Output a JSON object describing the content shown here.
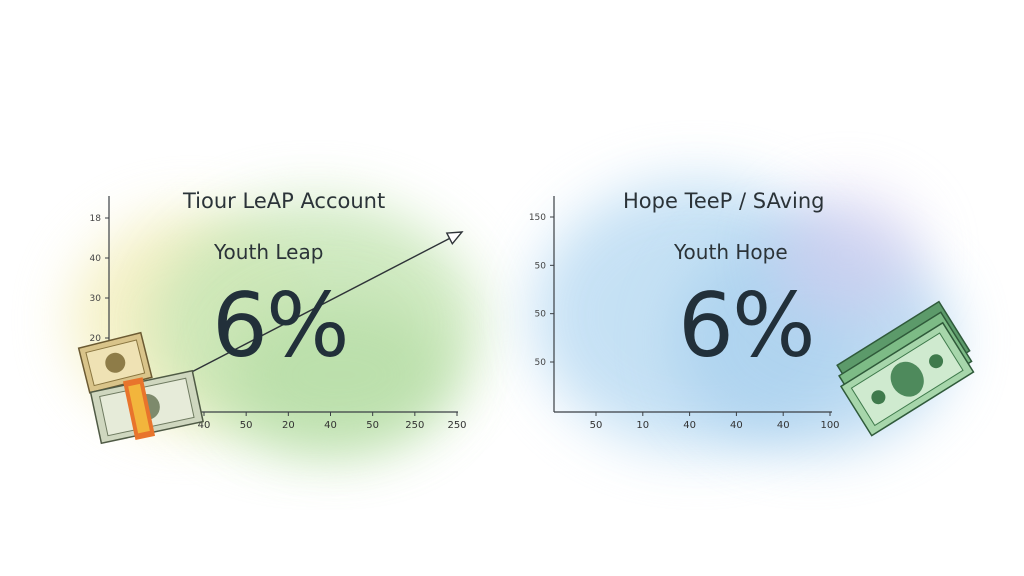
{
  "chart_data": [
    {
      "type": "line",
      "title": "Tiour LeAP Account",
      "subtitle": "Youth Leap",
      "rate_label": "6%",
      "y_ticks": [
        "18",
        "40",
        "30",
        "20"
      ],
      "x_ticks": [
        "40",
        "50",
        "20",
        "40",
        "50",
        "250",
        "250"
      ],
      "series": [
        {
          "x": [
            0,
            1
          ],
          "y": [
            0,
            1
          ]
        }
      ],
      "grid": false,
      "colors": {
        "wash": "#b9dfa8",
        "wash_edge": "#f4f0b8",
        "axis": "#3a3f44",
        "trend": "#2e3338"
      },
      "icon": "cash-bundle-icon"
    },
    {
      "type": "line",
      "title": "Hope TeeP / SAving",
      "subtitle": "Youth Hope",
      "rate_label": "6%",
      "y_ticks": [
        "150",
        "50",
        "50",
        "50"
      ],
      "x_ticks": [
        "50",
        "10",
        "40",
        "40",
        "40",
        "100"
      ],
      "series": [],
      "grid": false,
      "colors": {
        "wash": "#a9d0ee",
        "wash_edge": "#c9c2ea",
        "axis": "#3a3f44"
      },
      "icon": "dollar-bills-icon"
    }
  ]
}
